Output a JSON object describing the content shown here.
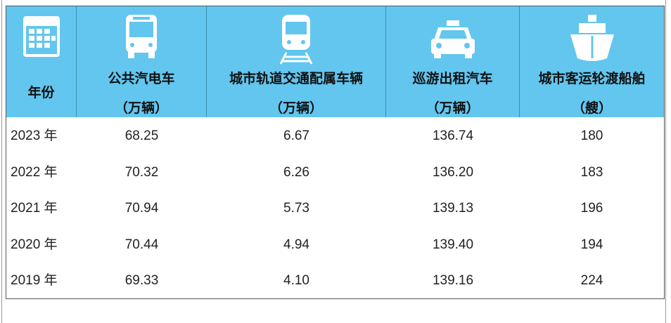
{
  "table": {
    "header": [
      {
        "label": "年份"
      },
      {
        "label": "公共汽电车",
        "unit": "（万辆）"
      },
      {
        "label": "城市轨道交通配属车辆",
        "unit": "（万辆）"
      },
      {
        "label": "巡游出租汽车",
        "unit": "（万辆）"
      },
      {
        "label": "城市客运轮渡船舶",
        "unit": "（艘）"
      }
    ],
    "rows": [
      [
        "2023 年",
        "68.25",
        "6.67",
        "136.74",
        "180"
      ],
      [
        "2022 年",
        "70.32",
        "6.26",
        "136.20",
        "183"
      ],
      [
        "2021 年",
        "70.94",
        "5.73",
        "139.13",
        "196"
      ],
      [
        "2020 年",
        "70.44",
        "4.94",
        "139.40",
        "194"
      ],
      [
        "2019 年",
        "69.33",
        "4.10",
        "139.16",
        "224"
      ]
    ]
  }
}
